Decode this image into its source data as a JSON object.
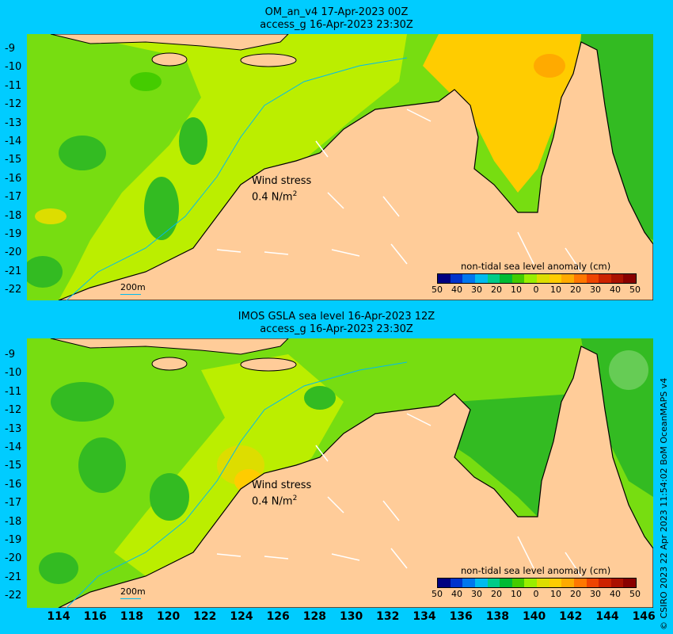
{
  "top": {
    "title1": "OM_an_v4  17-Apr-2023 00Z",
    "title2": "access_g 16-Apr-2023 23:30Z",
    "wind_label": "Wind stress",
    "wind_value": "0.4 N/m",
    "wind_sup": "2",
    "bathy_label": "200m",
    "legend_title": "non-tidal sea level anomaly (cm)"
  },
  "bottom": {
    "title1": "IMOS GSLA sea level  16-Apr-2023 12Z",
    "title2": "access_g 16-Apr-2023 23:30Z",
    "wind_label": "Wind stress",
    "wind_value": "0.4 N/m",
    "wind_sup": "2",
    "bathy_label": "200m",
    "legend_title": "non-tidal sea level anomaly (cm)"
  },
  "latitudes": [
    "-9",
    "-10",
    "-11",
    "-12",
    "-13",
    "-14",
    "-15",
    "-16",
    "-17",
    "-18",
    "-19",
    "-20",
    "-21",
    "-22"
  ],
  "longitudes": [
    "114",
    "116",
    "118",
    "120",
    "122",
    "124",
    "126",
    "128",
    "130",
    "132",
    "134",
    "136",
    "138",
    "140",
    "142",
    "144",
    "146"
  ],
  "colorbar": {
    "ticks": [
      "50",
      "40",
      "30",
      "20",
      "10",
      "0",
      "10",
      "20",
      "30",
      "40",
      "50"
    ],
    "colors": [
      "#000080",
      "#0033cc",
      "#0077ee",
      "#00bbee",
      "#00cc88",
      "#00bb33",
      "#44cc00",
      "#99ee00",
      "#dddd00",
      "#ffcc00",
      "#ffaa00",
      "#ff7700",
      "#ee4400",
      "#cc2200",
      "#aa1100",
      "#880000"
    ]
  },
  "credit": "© CSIRO 2023   22 Apr 2023 11:54:02 BoM OceanMAPS v4",
  "colors": {
    "background": "#00ccff",
    "land": "#ffcc99",
    "shelf": "#999999",
    "arrows": "#ffffff"
  }
}
